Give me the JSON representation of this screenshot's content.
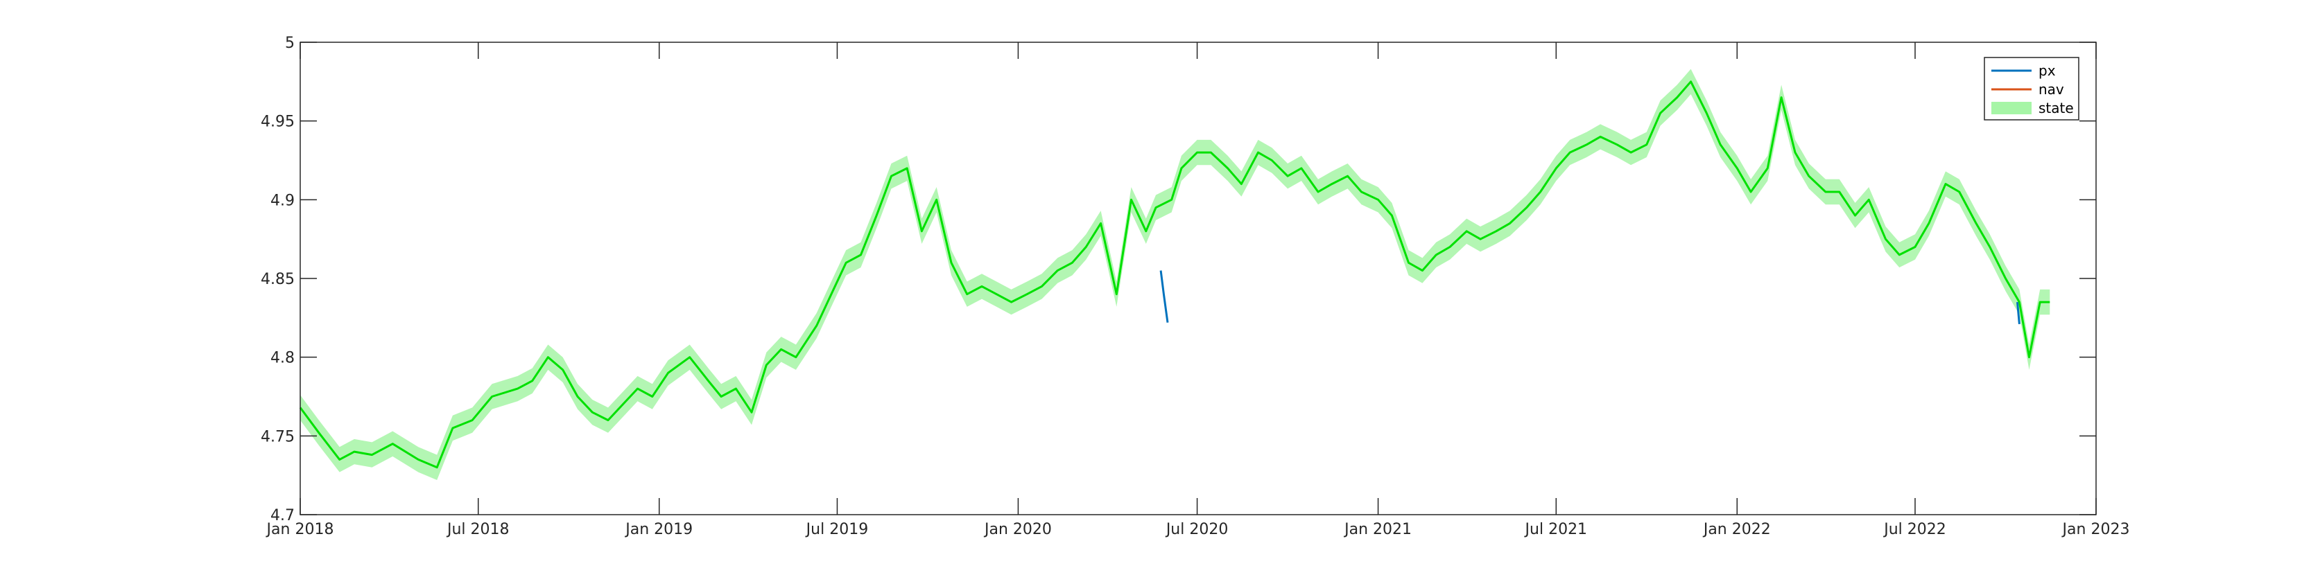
{
  "chart_data": {
    "type": "line",
    "title": "",
    "xlabel": "",
    "ylabel": "",
    "xlim": [
      "2018-01-01",
      "2023-01-01"
    ],
    "ylim": [
      4.7,
      5.0
    ],
    "x_ticks": [
      "Jan 2018",
      "Jul 2018",
      "Jan 2019",
      "Jul 2019",
      "Jan 2020",
      "Jul 2020",
      "Jan 2021",
      "Jul 2021",
      "Jan 2022",
      "Jul 2022",
      "Jan 2023"
    ],
    "y_ticks": [
      "4.7",
      "4.75",
      "4.8",
      "4.85",
      "4.9",
      "4.95",
      "5"
    ],
    "grid": false,
    "legend": {
      "position": "top-right",
      "entries": [
        "px",
        "nav",
        "state"
      ]
    },
    "colors": {
      "px": "#0072bd",
      "nav": "#d95319",
      "state_line": "#00e000",
      "state_band": "#a6f5a6"
    },
    "series": [
      {
        "name": "px",
        "x": [
          "2020-05-25",
          "2020-05-28",
          "2020-06-01",
          "2022-10-13",
          "2022-10-15"
        ],
        "values": [
          4.855,
          4.84,
          4.822,
          4.835,
          4.821
        ]
      },
      {
        "name": "state",
        "band_halfwidth": 0.008,
        "x": [
          "2018-01-01",
          "2018-01-20",
          "2018-02-10",
          "2018-02-25",
          "2018-03-15",
          "2018-04-05",
          "2018-05-01",
          "2018-05-20",
          "2018-06-05",
          "2018-06-25",
          "2018-07-15",
          "2018-08-10",
          "2018-08-25",
          "2018-09-10",
          "2018-09-25",
          "2018-10-10",
          "2018-10-25",
          "2018-11-10",
          "2018-11-25",
          "2018-12-10",
          "2018-12-25",
          "2019-01-10",
          "2019-02-01",
          "2019-02-20",
          "2019-03-05",
          "2019-03-20",
          "2019-04-05",
          "2019-04-20",
          "2019-05-05",
          "2019-05-20",
          "2019-06-10",
          "2019-06-25",
          "2019-07-10",
          "2019-07-25",
          "2019-08-10",
          "2019-08-25",
          "2019-09-10",
          "2019-09-25",
          "2019-10-10",
          "2019-10-25",
          "2019-11-10",
          "2019-11-25",
          "2019-12-10",
          "2019-12-25",
          "2020-01-10",
          "2020-01-25",
          "2020-02-10",
          "2020-02-25",
          "2020-03-10",
          "2020-03-25",
          "2020-04-10",
          "2020-04-25",
          "2020-05-10",
          "2020-05-20",
          "2020-06-05",
          "2020-06-15",
          "2020-07-01",
          "2020-07-15",
          "2020-08-01",
          "2020-08-15",
          "2020-09-01",
          "2020-09-15",
          "2020-10-01",
          "2020-10-15",
          "2020-11-01",
          "2020-11-15",
          "2020-12-01",
          "2020-12-15",
          "2021-01-01",
          "2021-01-15",
          "2021-02-01",
          "2021-02-15",
          "2021-03-01",
          "2021-03-15",
          "2021-04-01",
          "2021-04-15",
          "2021-05-01",
          "2021-05-15",
          "2021-06-01",
          "2021-06-15",
          "2021-07-01",
          "2021-07-15",
          "2021-08-01",
          "2021-08-15",
          "2021-09-01",
          "2021-09-15",
          "2021-10-01",
          "2021-10-15",
          "2021-11-01",
          "2021-11-15",
          "2021-12-01",
          "2021-12-15",
          "2022-01-01",
          "2022-01-15",
          "2022-02-01",
          "2022-02-15",
          "2022-03-01",
          "2022-03-15",
          "2022-04-01",
          "2022-04-15",
          "2022-05-01",
          "2022-05-15",
          "2022-06-01",
          "2022-06-15",
          "2022-07-01",
          "2022-07-15",
          "2022-08-01",
          "2022-08-15",
          "2022-09-01",
          "2022-09-15",
          "2022-10-01",
          "2022-10-15",
          "2022-10-25",
          "2022-11-05",
          "2022-11-15"
        ],
        "values": [
          4.768,
          4.752,
          4.735,
          4.74,
          4.738,
          4.745,
          4.735,
          4.73,
          4.755,
          4.76,
          4.775,
          4.78,
          4.785,
          4.8,
          4.792,
          4.775,
          4.765,
          4.76,
          4.77,
          4.78,
          4.775,
          4.79,
          4.8,
          4.785,
          4.775,
          4.78,
          4.765,
          4.795,
          4.805,
          4.8,
          4.82,
          4.84,
          4.86,
          4.865,
          4.89,
          4.915,
          4.92,
          4.88,
          4.9,
          4.86,
          4.84,
          4.845,
          4.84,
          4.835,
          4.84,
          4.845,
          4.855,
          4.86,
          4.87,
          4.885,
          4.84,
          4.9,
          4.88,
          4.895,
          4.9,
          4.92,
          4.93,
          4.93,
          4.92,
          4.91,
          4.93,
          4.925,
          4.915,
          4.92,
          4.905,
          4.91,
          4.915,
          4.905,
          4.9,
          4.89,
          4.86,
          4.855,
          4.865,
          4.87,
          4.88,
          4.875,
          4.88,
          4.885,
          4.895,
          4.905,
          4.92,
          4.93,
          4.935,
          4.94,
          4.935,
          4.93,
          4.935,
          4.955,
          4.965,
          4.975,
          4.955,
          4.935,
          4.92,
          4.905,
          4.92,
          4.965,
          4.93,
          4.915,
          4.905,
          4.905,
          4.89,
          4.9,
          4.875,
          4.865,
          4.87,
          4.885,
          4.91,
          4.905,
          4.885,
          4.87,
          4.85,
          4.835,
          4.8,
          4.835,
          4.835
        ]
      }
    ]
  }
}
